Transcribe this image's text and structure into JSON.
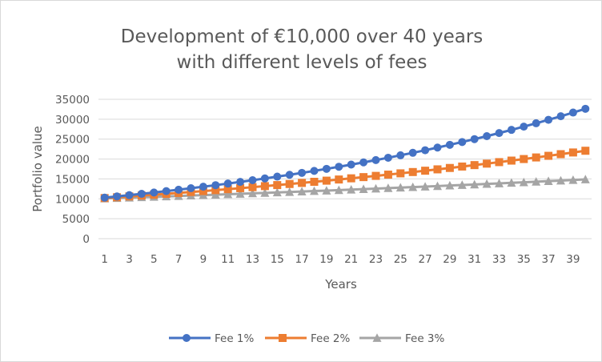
{
  "chart_data": {
    "type": "line",
    "title_lines": [
      "Development of €10,000 over 40 years",
      "with different levels of fees"
    ],
    "xlabel": "Years",
    "ylabel": "Portfolio value",
    "x": [
      1,
      2,
      3,
      4,
      5,
      6,
      7,
      8,
      9,
      10,
      11,
      12,
      13,
      14,
      15,
      16,
      17,
      18,
      19,
      20,
      21,
      22,
      23,
      24,
      25,
      26,
      27,
      28,
      29,
      30,
      31,
      32,
      33,
      34,
      35,
      36,
      37,
      38,
      39,
      40
    ],
    "x_tick_labels": [
      "1",
      "3",
      "5",
      "7",
      "9",
      "11",
      "13",
      "15",
      "17",
      "19",
      "21",
      "23",
      "25",
      "27",
      "29",
      "31",
      "33",
      "35",
      "37",
      "39"
    ],
    "ylim": [
      0,
      35000
    ],
    "y_ticks": [
      0,
      5000,
      10000,
      15000,
      20000,
      25000,
      30000,
      35000
    ],
    "y_tick_labels": [
      "0",
      "5000",
      "10000",
      "15000",
      "20000",
      "25000",
      "30000",
      "35000"
    ],
    "grid": "horizontal",
    "legend_position": "bottom",
    "series": [
      {
        "name": "Fee 1%",
        "color": "#4472c4",
        "marker": "circle",
        "values": [
          10300,
          10609,
          10927,
          11255,
          11593,
          11941,
          12299,
          12668,
          13048,
          13439,
          13842,
          14258,
          14685,
          15126,
          15580,
          16047,
          16528,
          17024,
          17535,
          18061,
          18603,
          19161,
          19736,
          20328,
          20938,
          21566,
          22213,
          22879,
          23566,
          24273,
          25001,
          25751,
          26523,
          27319,
          28139,
          28983,
          29852,
          30748,
          31670,
          32620
        ]
      },
      {
        "name": "Fee 2%",
        "color": "#ed7d31",
        "marker": "square",
        "values": [
          10200,
          10404,
          10612,
          10824,
          11041,
          11262,
          11487,
          11717,
          11951,
          12190,
          12434,
          12682,
          12936,
          13195,
          13459,
          13728,
          14002,
          14282,
          14568,
          14859,
          15157,
          15460,
          15769,
          16084,
          16406,
          16734,
          17069,
          17410,
          17758,
          18114,
          18476,
          18845,
          19222,
          19607,
          19999,
          20399,
          20807,
          21223,
          21647,
          22080
        ]
      },
      {
        "name": "Fee 3%",
        "color": "#a5a5a5",
        "marker": "triangle",
        "values": [
          10100,
          10201,
          10303,
          10406,
          10510,
          10615,
          10721,
          10829,
          10937,
          11046,
          11157,
          11268,
          11381,
          11495,
          11610,
          11726,
          11843,
          11961,
          12081,
          12202,
          12324,
          12447,
          12572,
          12697,
          12824,
          12953,
          13082,
          13213,
          13345,
          13478,
          13613,
          13749,
          13887,
          14026,
          14166,
          14308,
          14451,
          14595,
          14741,
          14889
        ]
      }
    ]
  }
}
